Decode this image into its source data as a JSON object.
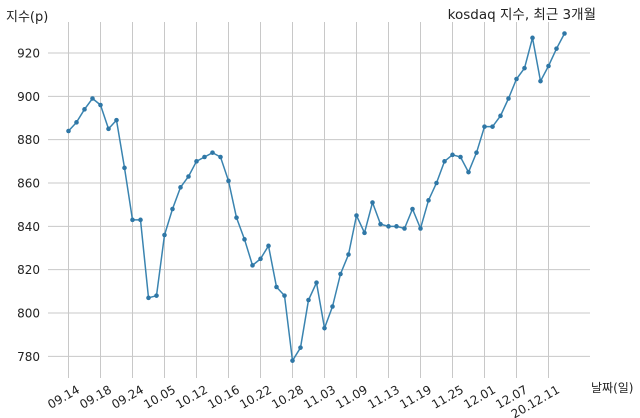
{
  "chart_data": {
    "type": "line",
    "title": "kosdaq 지수, 최근 3개월",
    "ylabel": "지수(p)",
    "xlabel": "날짜(일)",
    "ylim": [
      770,
      934
    ],
    "yticks": [
      780,
      800,
      820,
      840,
      860,
      880,
      900,
      920
    ],
    "xtick_labels": [
      "09.14",
      "09.18",
      "09.24",
      "10.05",
      "10.12",
      "10.16",
      "10.22",
      "10.28",
      "11.03",
      "11.09",
      "11.13",
      "11.19",
      "11.25",
      "12.01",
      "12.07",
      "20.12.11"
    ],
    "grid": true,
    "color": "#3a84b0",
    "values": [
      884,
      888,
      894,
      899,
      896,
      885,
      889,
      867,
      843,
      843,
      807,
      808,
      836,
      848,
      858,
      863,
      870,
      872,
      874,
      872,
      861,
      844,
      834,
      822,
      825,
      831,
      812,
      808,
      778,
      784,
      806,
      814,
      793,
      803,
      818,
      827,
      845,
      837,
      851,
      841,
      840,
      840,
      839,
      848,
      839,
      852,
      860,
      870,
      873,
      872,
      865,
      874,
      886,
      886,
      891,
      899,
      908,
      913,
      927,
      907,
      914,
      922,
      929
    ]
  }
}
